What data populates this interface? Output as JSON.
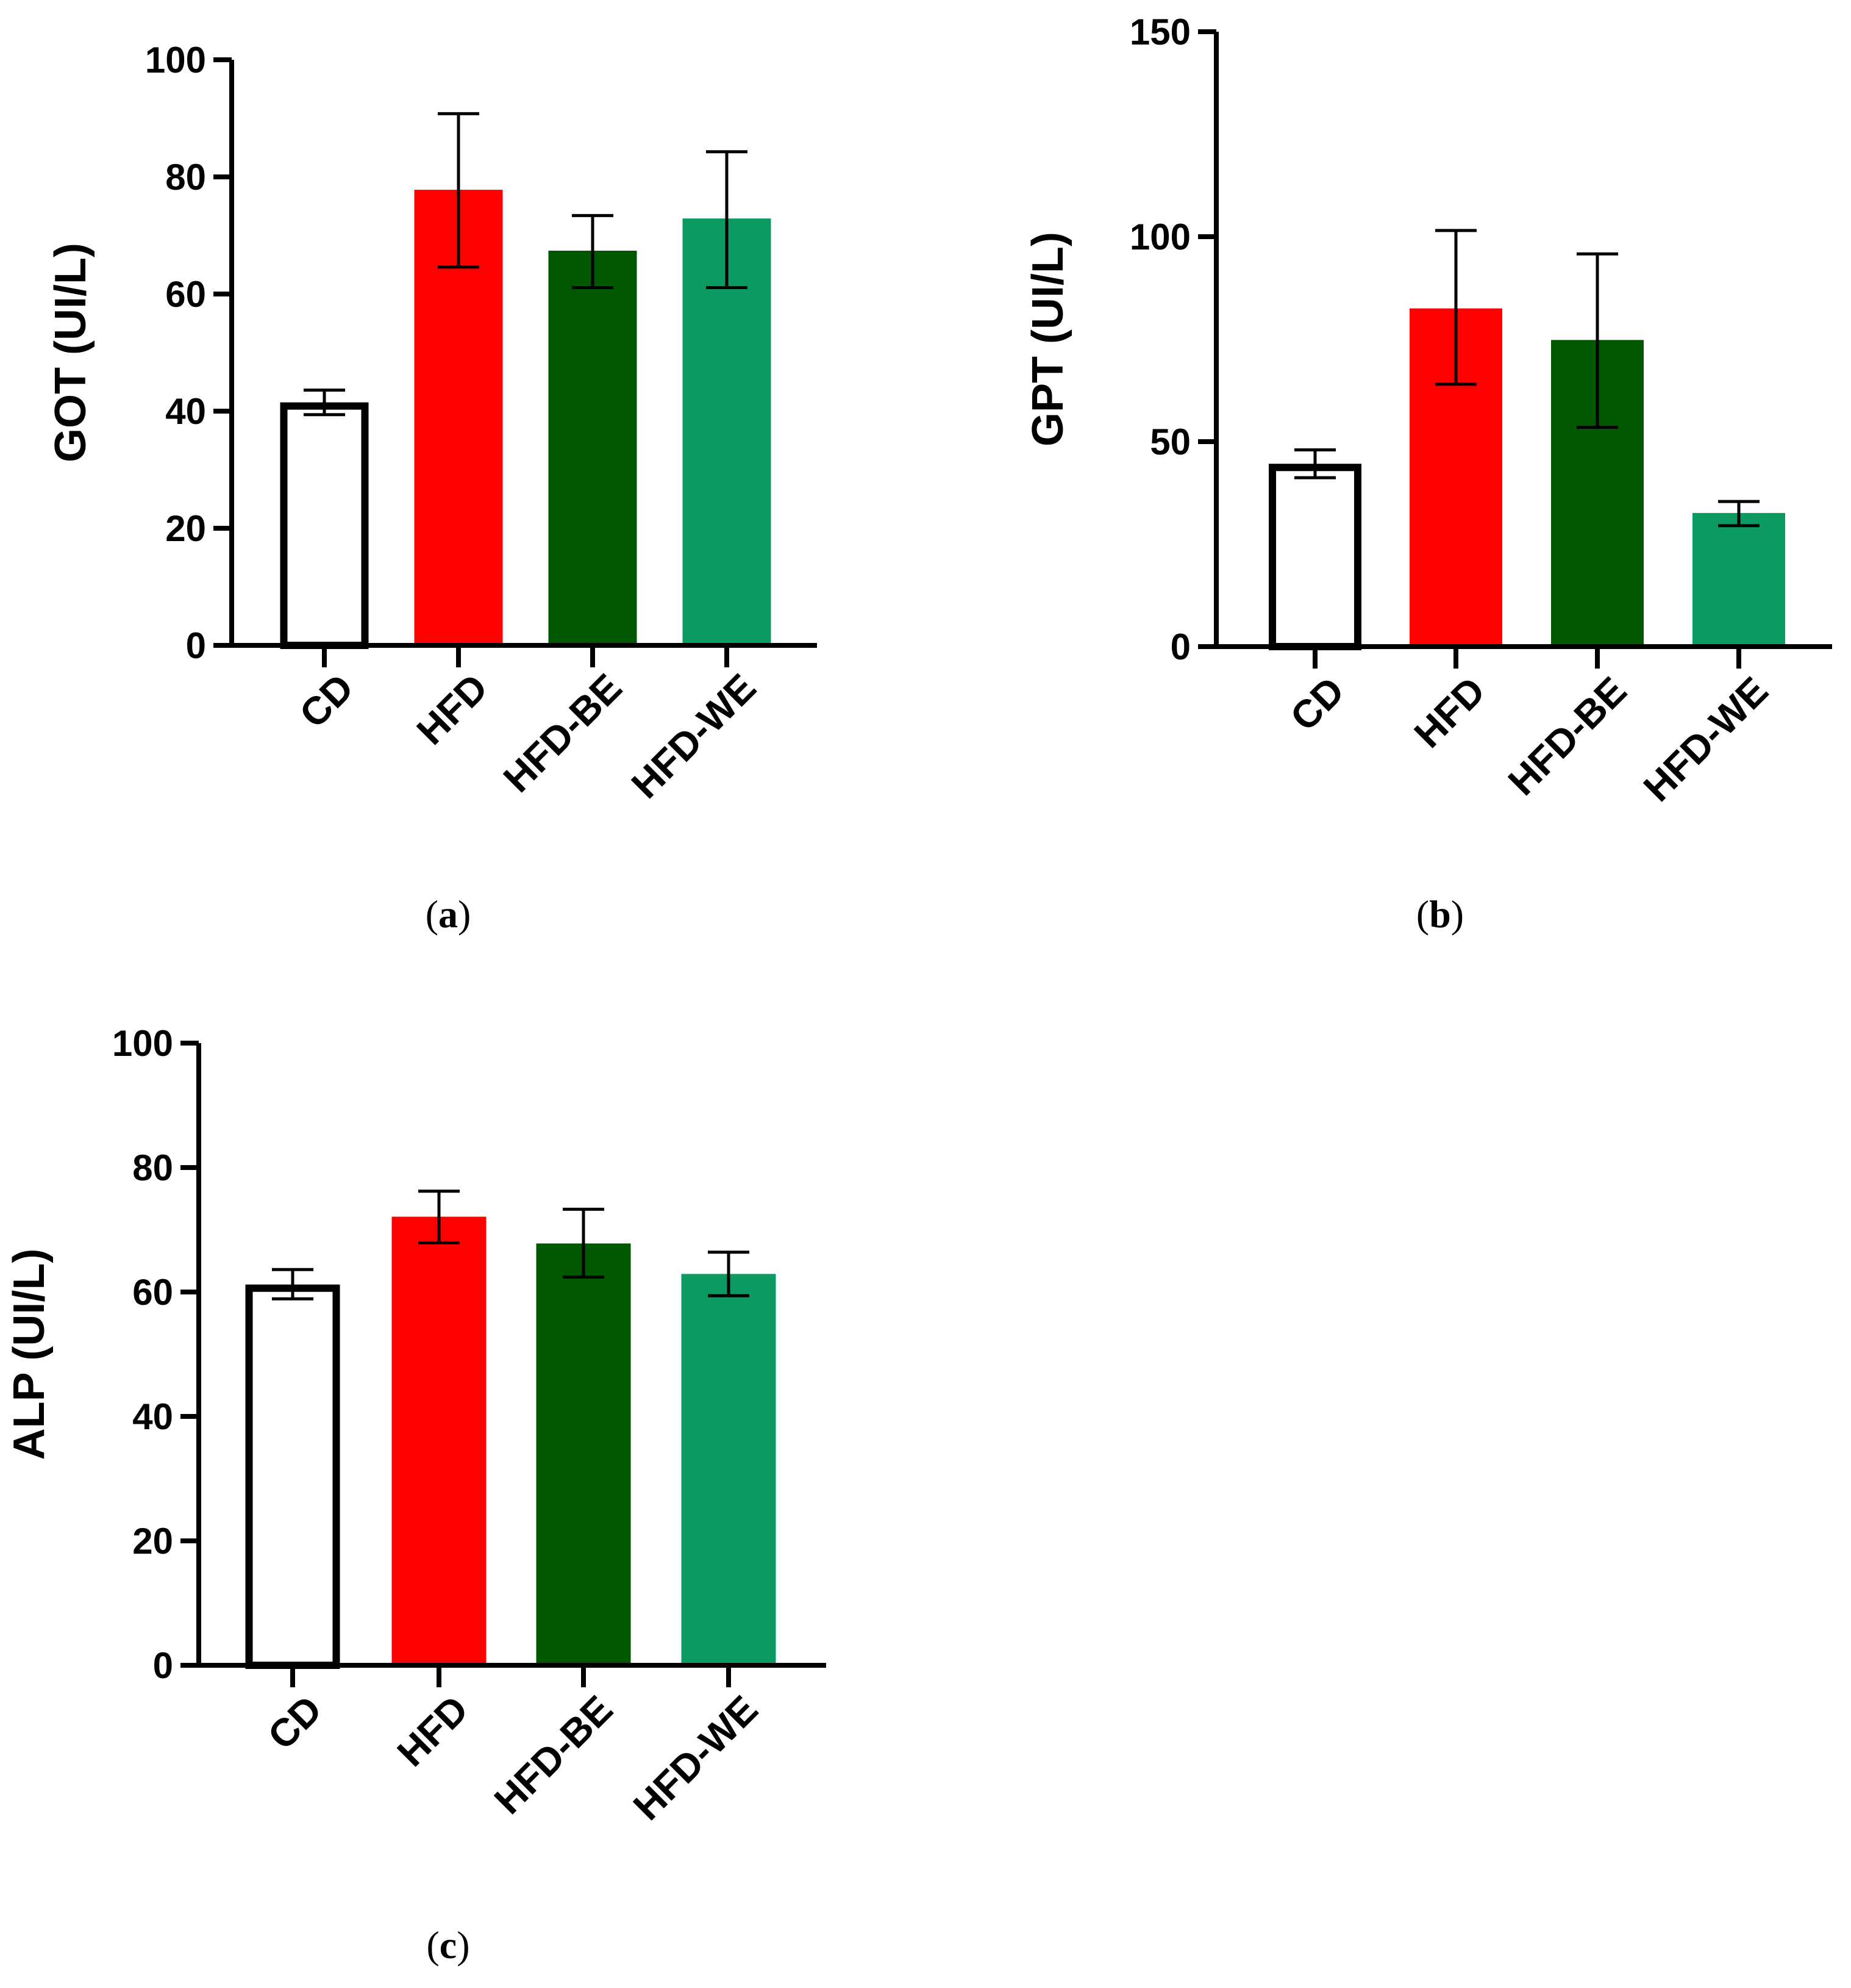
{
  "chart_data": [
    {
      "type": "bar",
      "panel_label": "a",
      "ylabel": "GOT (UI/L)",
      "ylim": [
        0,
        100
      ],
      "yticks": [
        0,
        20,
        40,
        60,
        80,
        100
      ],
      "categories": [
        "CD",
        "HFD",
        "HFD-BE",
        "HFD-WE"
      ],
      "values": [
        41.5,
        77.8,
        67.4,
        72.9
      ],
      "error_low": [
        39.4,
        64.6,
        61.1,
        61.1
      ],
      "error_high": [
        43.6,
        90.8,
        73.4,
        84.3
      ],
      "colors": [
        "#ffffff",
        "#ff0000",
        "#005700",
        "#0b9a61"
      ]
    },
    {
      "type": "bar",
      "panel_label": "b",
      "ylabel": "GPT (UI/L)",
      "ylim": [
        0,
        150
      ],
      "yticks": [
        0,
        50,
        100,
        150
      ],
      "categories": [
        "CD",
        "HFD",
        "HFD-BE",
        "HFD-WE"
      ],
      "values": [
        44.6,
        82.5,
        74.8,
        32.6
      ],
      "error_low": [
        41.2,
        64.0,
        53.5,
        29.5
      ],
      "error_high": [
        48.0,
        101.5,
        95.8,
        35.4
      ],
      "colors": [
        "#ffffff",
        "#ff0000",
        "#005700",
        "#0b9a61"
      ]
    },
    {
      "type": "bar",
      "panel_label": "c",
      "ylabel": "ALP (UI/L)",
      "ylim": [
        0,
        100
      ],
      "yticks": [
        0,
        20,
        40,
        60,
        80,
        100
      ],
      "categories": [
        "CD",
        "HFD",
        "HFD-BE",
        "HFD-WE"
      ],
      "values": [
        61.2,
        72.1,
        67.8,
        62.9
      ],
      "error_low": [
        58.9,
        67.9,
        62.4,
        59.4
      ],
      "error_high": [
        63.6,
        76.2,
        73.3,
        66.4
      ],
      "colors": [
        "#ffffff",
        "#ff0000",
        "#005700",
        "#0b9a61"
      ]
    }
  ]
}
